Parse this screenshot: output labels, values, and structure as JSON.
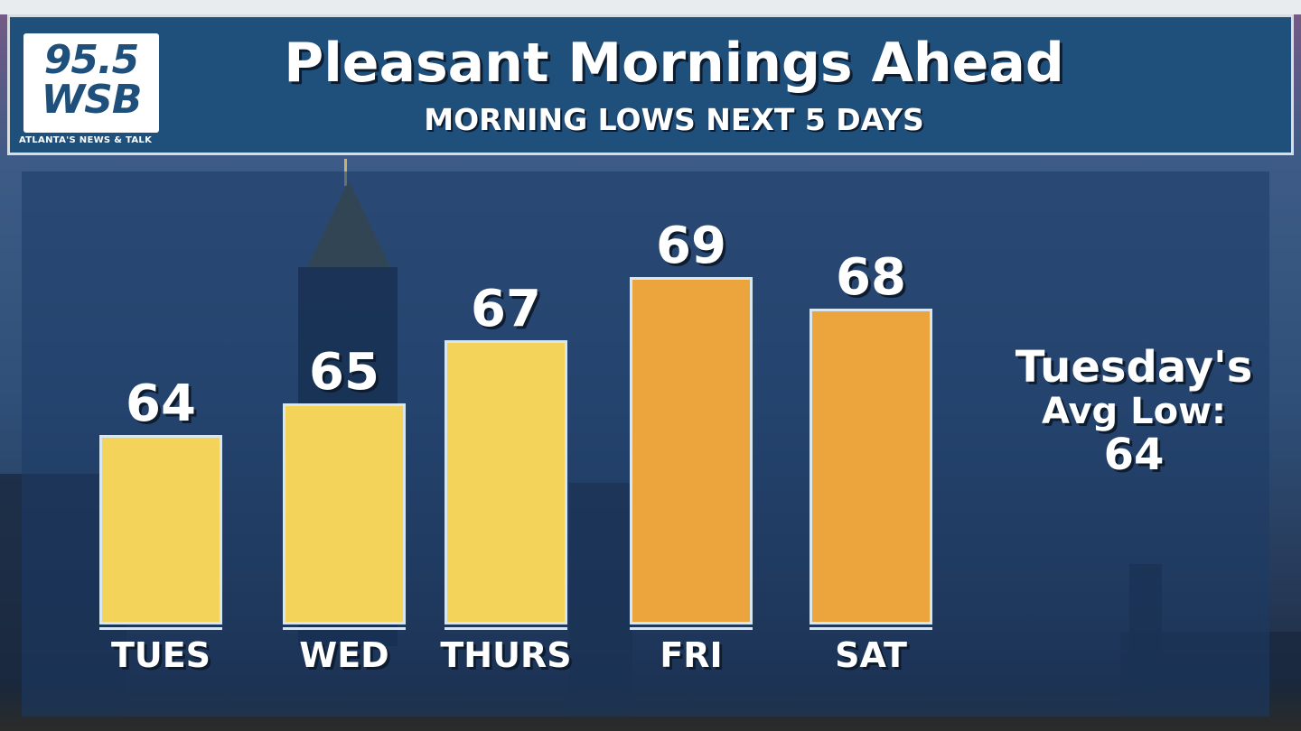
{
  "logo": {
    "number": "95.5",
    "call_letters": "WSB",
    "tagline": "ATLANTA'S NEWS & TALK"
  },
  "header": {
    "title": "Pleasant Mornings Ahead",
    "subtitle": "MORNING LOWS NEXT 5 DAYS"
  },
  "colors": {
    "header_bg": "#1f4f7b",
    "bar_yellow": "#f3d35a",
    "bar_orange": "#eca53c",
    "bar_border": "#d7e7f2"
  },
  "chart_data": {
    "type": "bar",
    "title": "Pleasant Mornings Ahead",
    "subtitle": "MORNING LOWS NEXT 5 DAYS",
    "categories": [
      "TUES",
      "WED",
      "THURS",
      "FRI",
      "SAT"
    ],
    "values": [
      64,
      65,
      67,
      69,
      68
    ],
    "labels": [
      "64",
      "65",
      "67",
      "69",
      "68"
    ],
    "bar_colors": [
      "#f3d35a",
      "#f3d35a",
      "#f3d35a",
      "#eca53c",
      "#eca53c"
    ],
    "xlabel": "",
    "ylabel": "",
    "ylim": [
      58,
      70
    ],
    "grid": false,
    "legend": "none"
  },
  "annotation": {
    "line1": "Tuesday's",
    "line2": "Avg Low:",
    "line3": "64"
  }
}
